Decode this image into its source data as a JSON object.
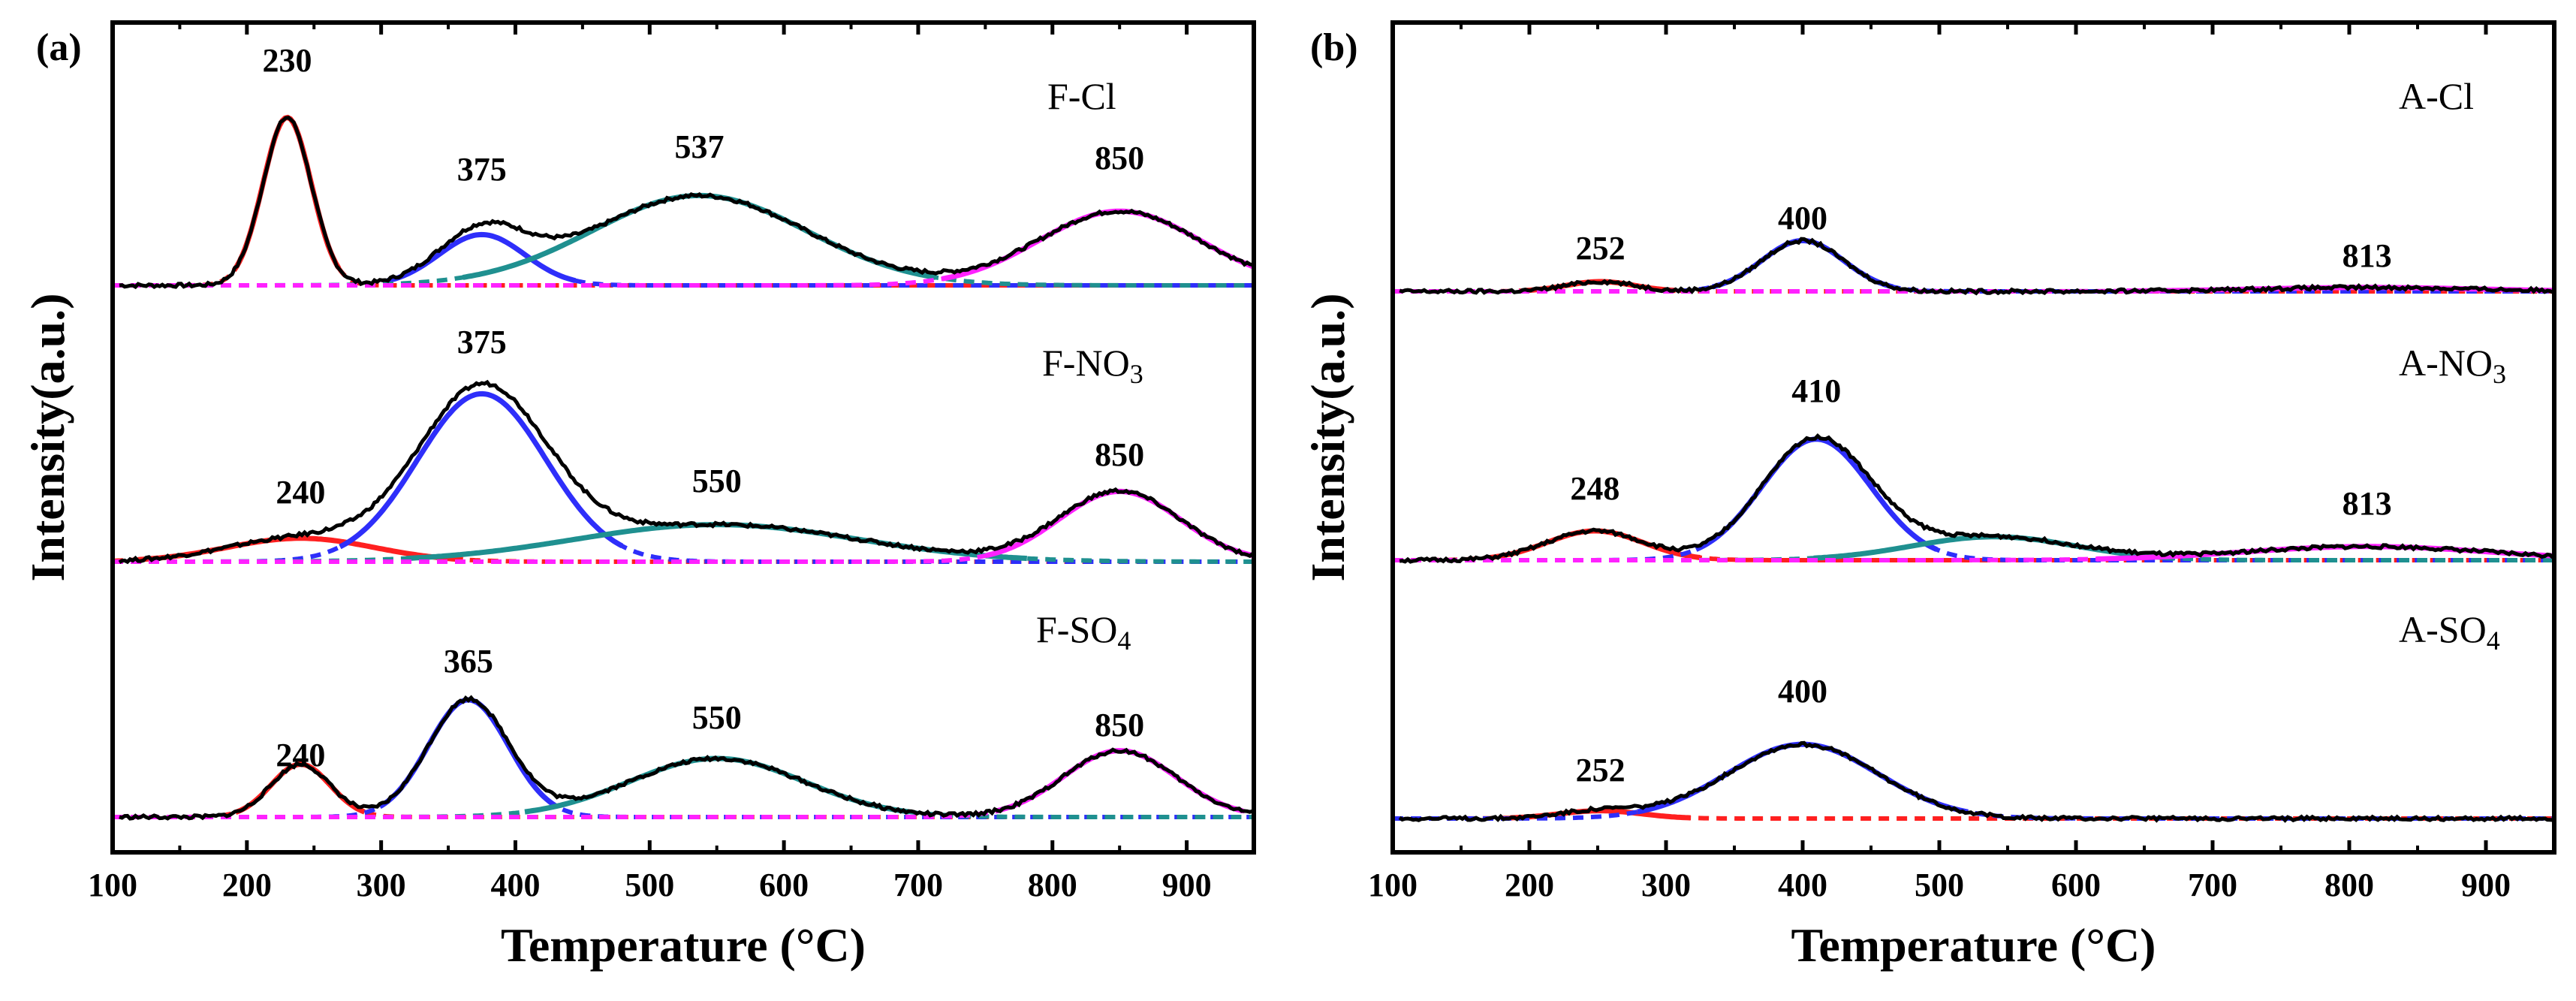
{
  "chart_data": [
    {
      "panel": "(a)",
      "type": "line",
      "xlabel": "Temperature (°C)",
      "ylabel": "Intensity(a.u.)",
      "xlim": [
        100,
        950
      ],
      "xticks": [
        100,
        200,
        300,
        400,
        500,
        600,
        700,
        800,
        900
      ],
      "tick_labels": [
        "100",
        "200",
        "300",
        "400",
        "500",
        "600",
        "700",
        "800",
        "900"
      ],
      "samples": [
        {
          "name": "F-Cl",
          "label_main": "F-Cl",
          "label_sub": "",
          "peaks": [
            {
              "center": 230,
              "height": 0.86,
              "width": 18,
              "color": "#ff2020",
              "label": "230"
            },
            {
              "center": 375,
              "height": 0.26,
              "width": 32,
              "color": "#2e2efa",
              "label": "375"
            },
            {
              "center": 537,
              "height": 0.46,
              "width": 80,
              "color": "#1f9090",
              "label": "537"
            },
            {
              "center": 850,
              "height": 0.38,
              "width": 60,
              "color": "#ff22ff",
              "label": "850"
            }
          ]
        },
        {
          "name": "F-NO3",
          "label_main": "F-NO",
          "label_sub": "3",
          "peaks": [
            {
              "center": 240,
              "height": 0.12,
              "width": 55,
              "color": "#ff2020",
              "label": "240"
            },
            {
              "center": 375,
              "height": 0.86,
              "width": 48,
              "color": "#2e2efa",
              "label": "375"
            },
            {
              "center": 550,
              "height": 0.19,
              "width": 105,
              "color": "#1f9090",
              "label": "550"
            },
            {
              "center": 850,
              "height": 0.36,
              "width": 45,
              "color": "#ff22ff",
              "label": "850"
            }
          ]
        },
        {
          "name": "F-SO4",
          "label_main": "F-SO",
          "label_sub": "4",
          "peaks": [
            {
              "center": 240,
              "height": 0.27,
              "width": 22,
              "color": "#ff2020",
              "label": "240"
            },
            {
              "center": 365,
              "height": 0.6,
              "width": 30,
              "color": "#2e2efa",
              "label": "365"
            },
            {
              "center": 550,
              "height": 0.3,
              "width": 65,
              "color": "#1f9090",
              "label": "550"
            },
            {
              "center": 850,
              "height": 0.34,
              "width": 42,
              "color": "#ff22ff",
              "label": "850"
            }
          ]
        }
      ]
    },
    {
      "panel": "(b)",
      "type": "line",
      "xlabel": "Temperature (°C)",
      "ylabel": "Intensity(a.u.)",
      "xlim": [
        100,
        950
      ],
      "xticks": [
        100,
        200,
        300,
        400,
        500,
        600,
        700,
        800,
        900
      ],
      "tick_labels": [
        "100",
        "200",
        "300",
        "400",
        "500",
        "600",
        "700",
        "800",
        "900"
      ],
      "samples": [
        {
          "name": "A-Cl",
          "label_main": "A-Cl",
          "label_sub": "",
          "peaks": [
            {
              "center": 252,
              "height": 0.05,
              "width": 25,
              "color": "#ff2020",
              "label": "252"
            },
            {
              "center": 400,
              "height": 0.26,
              "width": 30,
              "color": "#2e2efa",
              "label": "400"
            },
            {
              "center": 813,
              "height": 0.02,
              "width": 80,
              "color": "#ff22ff",
              "label": "813"
            }
          ]
        },
        {
          "name": "A-NO3",
          "label_main": "A-NO",
          "label_sub": "3",
          "peaks": [
            {
              "center": 248,
              "height": 0.15,
              "width": 35,
              "color": "#ff2020",
              "label": "248"
            },
            {
              "center": 410,
              "height": 0.62,
              "width": 40,
              "color": "#2e2efa",
              "label": "410"
            },
            {
              "center": 540,
              "height": 0.12,
              "width": 60,
              "color": "#1f9090",
              "label": ""
            },
            {
              "center": 813,
              "height": 0.07,
              "width": 90,
              "color": "#ff22ff",
              "label": "813"
            }
          ]
        },
        {
          "name": "A-SO4",
          "label_main": "A-SO",
          "label_sub": "4",
          "peaks": [
            {
              "center": 252,
              "height": 0.04,
              "width": 30,
              "color": "#ff2020",
              "label": "252"
            },
            {
              "center": 400,
              "height": 0.38,
              "width": 55,
              "color": "#2e2efa",
              "label": "400"
            }
          ]
        }
      ]
    }
  ]
}
